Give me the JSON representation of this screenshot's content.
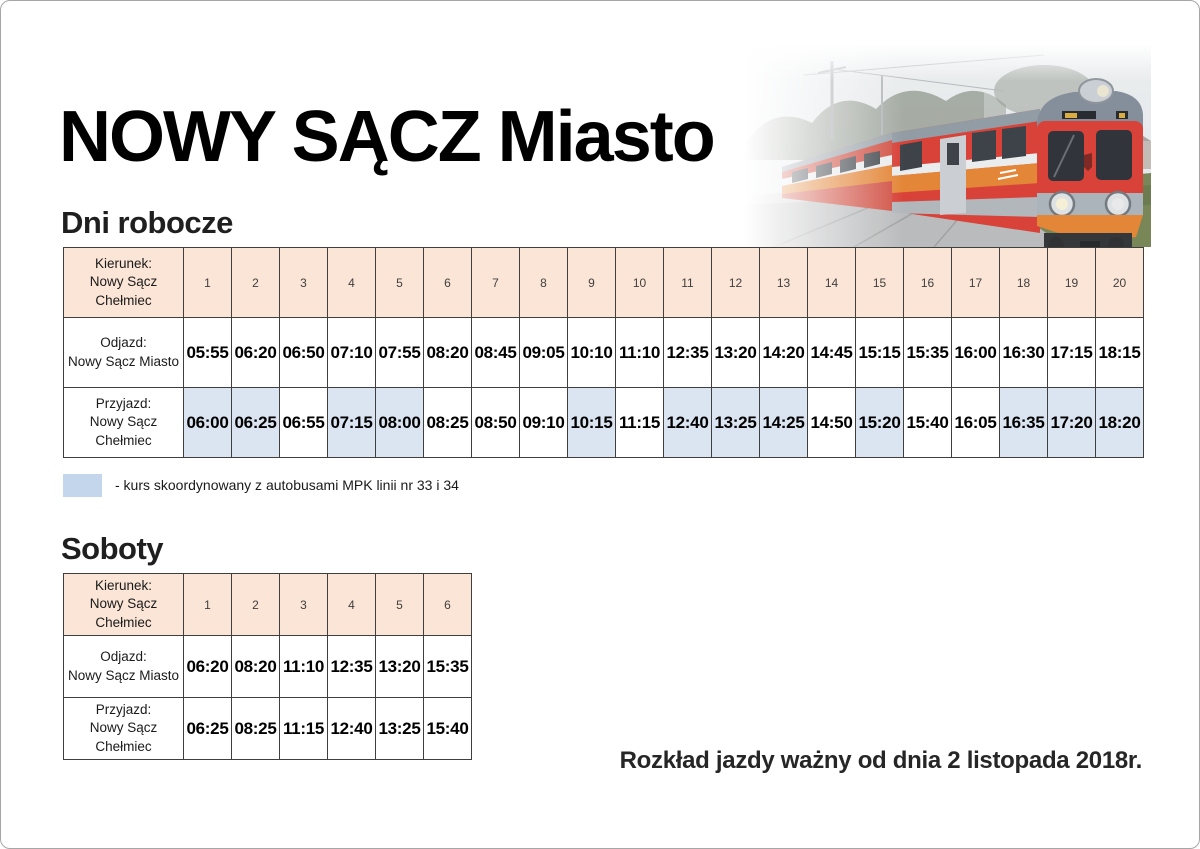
{
  "page": {
    "title": "NOWY SĄCZ Miasto",
    "validity_note": "Rozkład jazdy ważny od dnia 2 listopada 2018r."
  },
  "colors": {
    "header_bg": "#fbe5d6",
    "highlight_bg": "#dbe5f1",
    "legend_swatch": "#c3d6ec",
    "table_border": "#3f3f3f"
  },
  "legend": {
    "text": "- kurs skoordynowany z autobusami MPK linii nr 33 i 34"
  },
  "photo": {
    "name": "train-photo"
  },
  "tables": [
    {
      "id": "weekday",
      "section_title": "Dni robocze",
      "header": {
        "label_line1": "Kierunek:",
        "label_line2": "Nowy Sącz Chełmiec"
      },
      "columns": [
        "1",
        "2",
        "3",
        "4",
        "5",
        "6",
        "7",
        "8",
        "9",
        "10",
        "11",
        "12",
        "13",
        "14",
        "15",
        "16",
        "17",
        "18",
        "19",
        "20"
      ],
      "rows": [
        {
          "label_line1": "Odjazd:",
          "label_line2": "Nowy Sącz Miasto",
          "times": [
            "05:55",
            "06:20",
            "06:50",
            "07:10",
            "07:55",
            "08:20",
            "08:45",
            "09:05",
            "10:10",
            "11:10",
            "12:35",
            "13:20",
            "14:20",
            "14:45",
            "15:15",
            "15:35",
            "16:00",
            "16:30",
            "17:15",
            "18:15"
          ],
          "highlighted": []
        },
        {
          "label_line1": "Przyjazd:",
          "label_line2": "Nowy Sącz Chełmiec",
          "times": [
            "06:00",
            "06:25",
            "06:55",
            "07:15",
            "08:00",
            "08:25",
            "08:50",
            "09:10",
            "10:15",
            "11:15",
            "12:40",
            "13:25",
            "14:25",
            "14:50",
            "15:20",
            "15:40",
            "16:05",
            "16:35",
            "17:20",
            "18:20"
          ],
          "highlighted": [
            1,
            2,
            4,
            5,
            9,
            11,
            12,
            13,
            15,
            18,
            19,
            20
          ]
        }
      ]
    },
    {
      "id": "saturday",
      "section_title": "Soboty",
      "header": {
        "label_line1": "Kierunek:",
        "label_line2": "Nowy Sącz Chełmiec"
      },
      "columns": [
        "1",
        "2",
        "3",
        "4",
        "5",
        "6"
      ],
      "rows": [
        {
          "label_line1": "Odjazd:",
          "label_line2": "Nowy Sącz Miasto",
          "times": [
            "06:20",
            "08:20",
            "11:10",
            "12:35",
            "13:20",
            "15:35"
          ],
          "highlighted": []
        },
        {
          "label_line1": "Przyjazd:",
          "label_line2": "Nowy Sącz Chełmiec",
          "times": [
            "06:25",
            "08:25",
            "11:15",
            "12:40",
            "13:25",
            "15:40"
          ],
          "highlighted": []
        }
      ]
    }
  ]
}
